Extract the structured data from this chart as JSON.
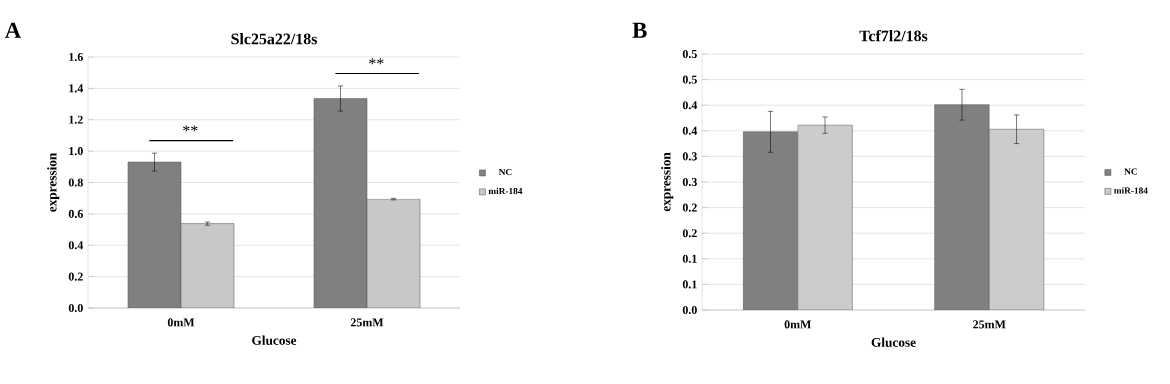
{
  "chart_data": [
    {
      "type": "bar",
      "title": "Slc25a22/18s",
      "xlabel": "Glucose",
      "ylabel": "expression",
      "categories": [
        "0mM",
        "25mM"
      ],
      "series": [
        {
          "name": "NC",
          "color": "#808080",
          "values": [
            0.93,
            1.335
          ],
          "errors": [
            0.057,
            0.08
          ]
        },
        {
          "name": "miR-184",
          "color": "#c8c8c8",
          "values": [
            0.538,
            0.694
          ],
          "errors": [
            0.01,
            0.005
          ]
        }
      ],
      "ylim": [
        0,
        1.6
      ],
      "yticks": [
        {
          "value": 0,
          "label": "0.0"
        },
        0.2,
        0.4,
        0.6,
        0.8,
        {
          "value": 1,
          "label": "1.0"
        },
        1.2,
        1.4,
        1.6
      ],
      "grid": "y",
      "legend": "right",
      "annotations": [
        "A",
        "**",
        "**"
      ]
    },
    {
      "type": "bar",
      "title": "Tcf7l2/18s",
      "xlabel": "Glucose",
      "ylabel": "expression",
      "categories": [
        "0mM",
        "25mM"
      ],
      "series": [
        {
          "name": "NC",
          "color": "#808080",
          "values": [
            0.348,
            0.401
          ],
          "errors": [
            0.04,
            0.03
          ]
        },
        {
          "name": "miR-184",
          "color": "#cccccc",
          "values": [
            0.361,
            0.353
          ],
          "errors": [
            0.016,
            0.028
          ]
        }
      ],
      "ylim": [
        0,
        0.5
      ],
      "yticks": [
        {
          "value": 0,
          "label": "0.0"
        },
        {
          "value": 0.05,
          "label": "0.1"
        },
        {
          "value": 0.1,
          "label": "0.1"
        },
        {
          "value": 0.15,
          "label": "0.2"
        },
        {
          "value": 0.2,
          "label": "0.2"
        },
        {
          "value": 0.25,
          "label": "0.3"
        },
        {
          "value": 0.3,
          "label": "0.3"
        },
        {
          "value": 0.35,
          "label": "0.4"
        },
        {
          "value": 0.4,
          "label": "0.4"
        },
        {
          "value": 0.45,
          "label": "0.5"
        },
        {
          "value": 0.5,
          "label": "0.5"
        }
      ],
      "grid": "y",
      "legend": "right",
      "annotations": [
        "B"
      ]
    }
  ]
}
